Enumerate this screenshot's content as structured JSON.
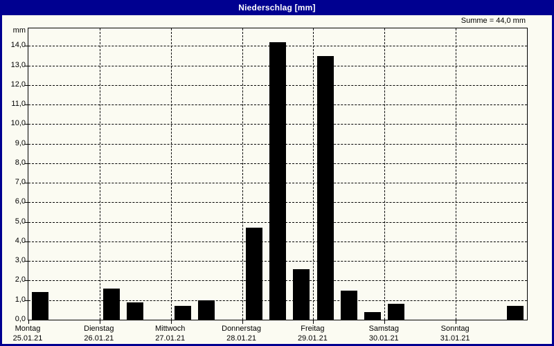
{
  "window": {
    "title": "Niederschlag [mm]"
  },
  "summary": {
    "label": "Summe = 44,0 mm"
  },
  "chart_data": {
    "type": "bar",
    "title": "Niederschlag [mm]",
    "ylabel_unit": "mm",
    "ylim": [
      0,
      14.9
    ],
    "grid": "dashed",
    "legend": "none",
    "y_tick_labels": [
      "0,0",
      "1,0",
      "2,0",
      "3,0",
      "4,0",
      "5,0",
      "6,0",
      "7,0",
      "8,0",
      "9,0",
      "10,0",
      "11,0",
      "12,0",
      "13,0",
      "14,0"
    ],
    "slots_per_day": 3,
    "days": [
      {
        "name": "Montag",
        "date": "25.01.21"
      },
      {
        "name": "Dienstag",
        "date": "26.01.21"
      },
      {
        "name": "Mittwoch",
        "date": "27.01.21"
      },
      {
        "name": "Donnerstag",
        "date": "28.01.21"
      },
      {
        "name": "Freitag",
        "date": "29.01.21"
      },
      {
        "name": "Samstag",
        "date": "30.01.21"
      },
      {
        "name": "Sonntag",
        "date": "31.01.21"
      }
    ],
    "bars": [
      {
        "day": 0,
        "slot": 0,
        "value": 1.4
      },
      {
        "day": 1,
        "slot": 0,
        "value": 1.6
      },
      {
        "day": 1,
        "slot": 1,
        "value": 0.9
      },
      {
        "day": 2,
        "slot": 0,
        "value": 0.7
      },
      {
        "day": 2,
        "slot": 1,
        "value": 1.0
      },
      {
        "day": 3,
        "slot": 0,
        "value": 4.7
      },
      {
        "day": 3,
        "slot": 1,
        "value": 14.2
      },
      {
        "day": 3,
        "slot": 2,
        "value": 2.6
      },
      {
        "day": 4,
        "slot": 0,
        "value": 13.5
      },
      {
        "day": 4,
        "slot": 1,
        "value": 1.5
      },
      {
        "day": 4,
        "slot": 2,
        "value": 0.4
      },
      {
        "day": 5,
        "slot": 0,
        "value": 0.8
      },
      {
        "day": 6,
        "slot": 2,
        "value": 0.7
      }
    ],
    "sum_mm": 44.0,
    "bar_color": "#000000"
  },
  "colors": {
    "titlebar": "#000090",
    "window_border": "#000090",
    "content_background": "#fbfbf2",
    "foreground": "#000000"
  }
}
